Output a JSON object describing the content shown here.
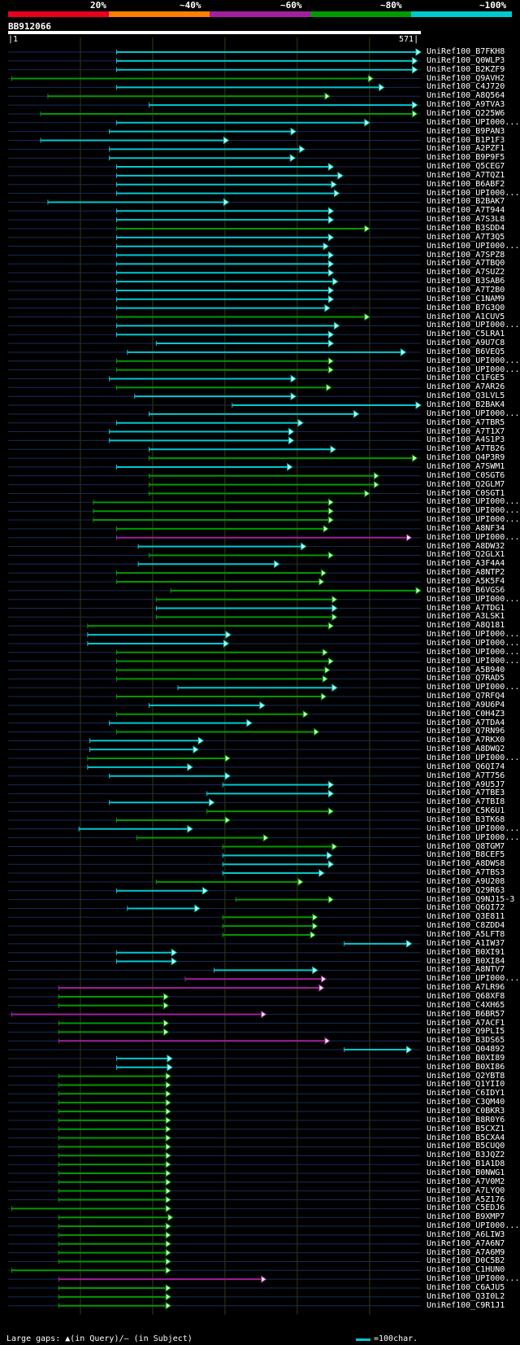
{
  "scale": {
    "labels": [
      "20%",
      "~40%",
      "~60%",
      "~80%",
      "~100%"
    ],
    "colors": [
      "#e8001c",
      "#ff7f00",
      "#a020a0",
      "#009a00",
      "#00c8d2"
    ]
  },
  "query": {
    "id": "BB912066",
    "start": "1",
    "end": "571"
  },
  "footer": {
    "large_gaps": "Large gaps: ▲(in Query)/– (in Subject)",
    "scale_note": "=100char."
  },
  "chart_data": {
    "type": "alignment-map",
    "query_length": 571,
    "hits": [
      {
        "name": "UniRef100_B7FKH8",
        "start": 150,
        "end": 571,
        "color": "c"
      },
      {
        "name": "UniRef100_Q0WLP3",
        "start": 150,
        "end": 566,
        "color": "c"
      },
      {
        "name": "UniRef100_B2KZF9",
        "start": 150,
        "end": 566,
        "color": "c"
      },
      {
        "name": "UniRef100_Q9AVH2",
        "start": 5,
        "end": 505,
        "color": "g"
      },
      {
        "name": "UniRef100_C4J720",
        "start": 150,
        "end": 520,
        "color": "c"
      },
      {
        "name": "UniRef100_A8Q564",
        "start": 55,
        "end": 445,
        "color": "g"
      },
      {
        "name": "UniRef100_A9TVA3",
        "start": 195,
        "end": 566,
        "color": "c"
      },
      {
        "name": "UniRef100_Q225W6",
        "start": 45,
        "end": 566,
        "color": "g"
      },
      {
        "name": "UniRef100_UPI000...",
        "start": 150,
        "end": 500,
        "color": "c"
      },
      {
        "name": "UniRef100_B9PAN3",
        "start": 140,
        "end": 398,
        "color": "c"
      },
      {
        "name": "UniRef100_B1P1F3",
        "start": 45,
        "end": 305,
        "color": "c"
      },
      {
        "name": "UniRef100_A2PZF1",
        "start": 140,
        "end": 410,
        "color": "c"
      },
      {
        "name": "UniRef100_B9P9F5",
        "start": 140,
        "end": 397,
        "color": "c"
      },
      {
        "name": "UniRef100_Q5CEG7",
        "start": 150,
        "end": 450,
        "color": "c"
      },
      {
        "name": "UniRef100_A7TQZ1",
        "start": 150,
        "end": 463,
        "color": "c"
      },
      {
        "name": "UniRef100_B6ABF2",
        "start": 150,
        "end": 454,
        "color": "c"
      },
      {
        "name": "UniRef100_UPI000...",
        "start": 150,
        "end": 458,
        "color": "c"
      },
      {
        "name": "UniRef100_B2BAK7",
        "start": 55,
        "end": 305,
        "color": "c"
      },
      {
        "name": "UniRef100_A7T944",
        "start": 150,
        "end": 450,
        "color": "c"
      },
      {
        "name": "UniRef100_A7S3L8",
        "start": 150,
        "end": 450,
        "color": "c"
      },
      {
        "name": "UniRef100_B3SDD4",
        "start": 150,
        "end": 500,
        "color": "g"
      },
      {
        "name": "UniRef100_A7T3Q5",
        "start": 150,
        "end": 450,
        "color": "c"
      },
      {
        "name": "UniRef100_UPI000...",
        "start": 150,
        "end": 443,
        "color": "c"
      },
      {
        "name": "UniRef100_A7SPZ8",
        "start": 150,
        "end": 450,
        "color": "c"
      },
      {
        "name": "UniRef100_A7TBQ0",
        "start": 150,
        "end": 450,
        "color": "c"
      },
      {
        "name": "UniRef100_A7SUZ2",
        "start": 150,
        "end": 450,
        "color": "c"
      },
      {
        "name": "UniRef100_B3SAB6",
        "start": 150,
        "end": 456,
        "color": "c"
      },
      {
        "name": "UniRef100_A7T2B0",
        "start": 150,
        "end": 450,
        "color": "c"
      },
      {
        "name": "UniRef100_C1NAM9",
        "start": 150,
        "end": 450,
        "color": "c"
      },
      {
        "name": "UniRef100_B7G3Q0",
        "start": 150,
        "end": 445,
        "color": "c"
      },
      {
        "name": "UniRef100_A1CUV5",
        "start": 150,
        "end": 500,
        "color": "g"
      },
      {
        "name": "UniRef100_UPI000...",
        "start": 150,
        "end": 458,
        "color": "c"
      },
      {
        "name": "UniRef100_C5LRA1",
        "start": 150,
        "end": 450,
        "color": "c"
      },
      {
        "name": "UniRef100_A9U7C8",
        "start": 205,
        "end": 450,
        "color": "c"
      },
      {
        "name": "UniRef100_B6VEQ5",
        "start": 165,
        "end": 550,
        "color": "c"
      },
      {
        "name": "UniRef100_UPI000...",
        "start": 150,
        "end": 450,
        "color": "g"
      },
      {
        "name": "UniRef100_UPI000...",
        "start": 150,
        "end": 450,
        "color": "g"
      },
      {
        "name": "UniRef100_C1FGE5",
        "start": 140,
        "end": 398,
        "color": "c"
      },
      {
        "name": "UniRef100_A7AR26",
        "start": 150,
        "end": 447,
        "color": "g"
      },
      {
        "name": "UniRef100_Q3LVL5",
        "start": 175,
        "end": 398,
        "color": "c"
      },
      {
        "name": "UniRef100_B2BAK4",
        "start": 310,
        "end": 571,
        "color": "c"
      },
      {
        "name": "UniRef100_UPI000...",
        "start": 195,
        "end": 485,
        "color": "c"
      },
      {
        "name": "UniRef100_A7TBR5",
        "start": 150,
        "end": 408,
        "color": "c"
      },
      {
        "name": "UniRef100_A7T1X7",
        "start": 140,
        "end": 395,
        "color": "c"
      },
      {
        "name": "UniRef100_A4S1P3",
        "start": 140,
        "end": 395,
        "color": "c"
      },
      {
        "name": "UniRef100_A7TB26",
        "start": 195,
        "end": 453,
        "color": "c"
      },
      {
        "name": "UniRef100_Q4P3R9",
        "start": 195,
        "end": 566,
        "color": "g"
      },
      {
        "name": "UniRef100_A7SWM1",
        "start": 150,
        "end": 393,
        "color": "c"
      },
      {
        "name": "UniRef100_C0SGT6",
        "start": 195,
        "end": 513,
        "color": "g"
      },
      {
        "name": "UniRef100_Q2GLM7",
        "start": 195,
        "end": 513,
        "color": "g"
      },
      {
        "name": "UniRef100_C0SGT1",
        "start": 195,
        "end": 500,
        "color": "g"
      },
      {
        "name": "UniRef100_UPI000...",
        "start": 118,
        "end": 450,
        "color": "g"
      },
      {
        "name": "UniRef100_UPI000...",
        "start": 118,
        "end": 450,
        "color": "g"
      },
      {
        "name": "UniRef100_UPI000...",
        "start": 118,
        "end": 450,
        "color": "g"
      },
      {
        "name": "UniRef100_A8NF34",
        "start": 150,
        "end": 443,
        "color": "g"
      },
      {
        "name": "UniRef100_UPI000...",
        "start": 150,
        "end": 558,
        "color": "m"
      },
      {
        "name": "UniRef100_A8DW32",
        "start": 180,
        "end": 412,
        "color": "c"
      },
      {
        "name": "UniRef100_Q2GLX1",
        "start": 195,
        "end": 450,
        "color": "g"
      },
      {
        "name": "UniRef100_A3F4A4",
        "start": 180,
        "end": 375,
        "color": "c"
      },
      {
        "name": "UniRef100_A8NTP2",
        "start": 150,
        "end": 440,
        "color": "g"
      },
      {
        "name": "UniRef100_A5K5F4",
        "start": 150,
        "end": 437,
        "color": "g"
      },
      {
        "name": "UniRef100_B6VGS6",
        "start": 225,
        "end": 571,
        "color": "g"
      },
      {
        "name": "UniRef100_UPI000...",
        "start": 205,
        "end": 455,
        "color": "g"
      },
      {
        "name": "UniRef100_A7TDG1",
        "start": 205,
        "end": 455,
        "color": "c"
      },
      {
        "name": "UniRef100_A3LSK1",
        "start": 205,
        "end": 455,
        "color": "g"
      },
      {
        "name": "UniRef100_A8Q181",
        "start": 110,
        "end": 450,
        "color": "g"
      },
      {
        "name": "UniRef100_UPI000...",
        "start": 110,
        "end": 308,
        "color": "c"
      },
      {
        "name": "UniRef100_UPI000...",
        "start": 110,
        "end": 305,
        "color": "c"
      },
      {
        "name": "UniRef100_UPI000...",
        "start": 150,
        "end": 442,
        "color": "g"
      },
      {
        "name": "UniRef100_UPI000...",
        "start": 150,
        "end": 450,
        "color": "g"
      },
      {
        "name": "UniRef100_A5B940",
        "start": 150,
        "end": 445,
        "color": "g"
      },
      {
        "name": "UniRef100_Q7RAD5",
        "start": 150,
        "end": 442,
        "color": "g"
      },
      {
        "name": "UniRef100_UPI000...",
        "start": 235,
        "end": 455,
        "color": "c"
      },
      {
        "name": "UniRef100_Q7RFQ4",
        "start": 150,
        "end": 440,
        "color": "g"
      },
      {
        "name": "UniRef100_A9U6P4",
        "start": 195,
        "end": 355,
        "color": "c"
      },
      {
        "name": "UniRef100_C0H4Z3",
        "start": 150,
        "end": 415,
        "color": "g"
      },
      {
        "name": "UniRef100_A7TDA4",
        "start": 140,
        "end": 337,
        "color": "c"
      },
      {
        "name": "UniRef100_Q7RN96",
        "start": 150,
        "end": 430,
        "color": "g"
      },
      {
        "name": "UniRef100_A7RKX0",
        "start": 113,
        "end": 270,
        "color": "c"
      },
      {
        "name": "UniRef100_A8DWQ2",
        "start": 113,
        "end": 263,
        "color": "c"
      },
      {
        "name": "UniRef100_UPI000...",
        "start": 110,
        "end": 307,
        "color": "g"
      },
      {
        "name": "UniRef100_Q6QI74",
        "start": 110,
        "end": 255,
        "color": "c"
      },
      {
        "name": "UniRef100_A7T756",
        "start": 140,
        "end": 307,
        "color": "c"
      },
      {
        "name": "UniRef100_A9U5J7",
        "start": 297,
        "end": 450,
        "color": "c"
      },
      {
        "name": "UniRef100_A7TBE3",
        "start": 275,
        "end": 450,
        "color": "c"
      },
      {
        "name": "UniRef100_A7TBI8",
        "start": 140,
        "end": 285,
        "color": "c"
      },
      {
        "name": "UniRef100_C5K6U1",
        "start": 275,
        "end": 450,
        "color": "g"
      },
      {
        "name": "UniRef100_B3TK68",
        "start": 150,
        "end": 307,
        "color": "g"
      },
      {
        "name": "UniRef100_UPI000...",
        "start": 98,
        "end": 255,
        "color": "c"
      },
      {
        "name": "UniRef100_UPI000...",
        "start": 178,
        "end": 360,
        "color": "g"
      },
      {
        "name": "UniRef100_Q8TGM7",
        "start": 297,
        "end": 455,
        "color": "g"
      },
      {
        "name": "UniRef100_B8CEF5",
        "start": 297,
        "end": 448,
        "color": "c"
      },
      {
        "name": "UniRef100_A8DWS8",
        "start": 297,
        "end": 450,
        "color": "c"
      },
      {
        "name": "UniRef100_A7TBS3",
        "start": 297,
        "end": 437,
        "color": "c"
      },
      {
        "name": "UniRef100_A9U208",
        "start": 205,
        "end": 408,
        "color": "g"
      },
      {
        "name": "UniRef100_Q29R63",
        "start": 150,
        "end": 276,
        "color": "c"
      },
      {
        "name": "UniRef100_Q9NJ15-3",
        "start": 315,
        "end": 450,
        "color": "g"
      },
      {
        "name": "UniRef100_Q6QI72",
        "start": 165,
        "end": 265,
        "color": "c"
      },
      {
        "name": "UniRef100_Q3E811",
        "start": 297,
        "end": 428,
        "color": "g"
      },
      {
        "name": "UniRef100_C8ZDD4",
        "start": 297,
        "end": 428,
        "color": "g"
      },
      {
        "name": "UniRef100_A5LFT8",
        "start": 297,
        "end": 425,
        "color": "g"
      },
      {
        "name": "UniRef100_A1IW37",
        "start": 465,
        "end": 558,
        "color": "c"
      },
      {
        "name": "UniRef100_B0XI91",
        "start": 150,
        "end": 233,
        "color": "c"
      },
      {
        "name": "UniRef100_B0XI84",
        "start": 150,
        "end": 233,
        "color": "c"
      },
      {
        "name": "UniRef100_A8NTV7",
        "start": 285,
        "end": 428,
        "color": "c"
      },
      {
        "name": "UniRef100_UPI000...",
        "start": 245,
        "end": 440,
        "color": "m"
      },
      {
        "name": "UniRef100_A7LR96",
        "start": 70,
        "end": 437,
        "color": "m"
      },
      {
        "name": "UniRef100_Q68XF8",
        "start": 70,
        "end": 222,
        "color": "g"
      },
      {
        "name": "UniRef100_C4XH65",
        "start": 70,
        "end": 222,
        "color": "g"
      },
      {
        "name": "UniRef100_B6BR57",
        "start": 5,
        "end": 357,
        "color": "m"
      },
      {
        "name": "UniRef100_A7ACF1",
        "start": 70,
        "end": 222,
        "color": "g"
      },
      {
        "name": "UniRef100_Q9PLI5",
        "start": 70,
        "end": 222,
        "color": "g"
      },
      {
        "name": "UniRef100_B3DS65",
        "start": 70,
        "end": 445,
        "color": "m"
      },
      {
        "name": "UniRef100_Q04892",
        "start": 465,
        "end": 558,
        "color": "c"
      },
      {
        "name": "UniRef100_B0XI89",
        "start": 150,
        "end": 227,
        "color": "c"
      },
      {
        "name": "UniRef100_B0XI86",
        "start": 150,
        "end": 227,
        "color": "c"
      },
      {
        "name": "UniRef100_Q2YBT8",
        "start": 70,
        "end": 225,
        "color": "g"
      },
      {
        "name": "UniRef100_Q1YII0",
        "start": 70,
        "end": 225,
        "color": "g"
      },
      {
        "name": "UniRef100_C6IDY1",
        "start": 70,
        "end": 225,
        "color": "g"
      },
      {
        "name": "UniRef100_C3QM40",
        "start": 70,
        "end": 225,
        "color": "g"
      },
      {
        "name": "UniRef100_C0BKR3",
        "start": 70,
        "end": 225,
        "color": "g"
      },
      {
        "name": "UniRef100_B8R0Y6",
        "start": 70,
        "end": 225,
        "color": "g"
      },
      {
        "name": "UniRef100_B5CXZ1",
        "start": 70,
        "end": 225,
        "color": "g"
      },
      {
        "name": "UniRef100_B5CXA4",
        "start": 70,
        "end": 225,
        "color": "g"
      },
      {
        "name": "UniRef100_B5CUQ0",
        "start": 70,
        "end": 225,
        "color": "g"
      },
      {
        "name": "UniRef100_B3JQZ2",
        "start": 70,
        "end": 225,
        "color": "g"
      },
      {
        "name": "UniRef100_B1A1D8",
        "start": 70,
        "end": 225,
        "color": "g"
      },
      {
        "name": "UniRef100_B0NWG1",
        "start": 70,
        "end": 225,
        "color": "g"
      },
      {
        "name": "UniRef100_A7V0M2",
        "start": 70,
        "end": 225,
        "color": "g"
      },
      {
        "name": "UniRef100_A7LYQ0",
        "start": 70,
        "end": 225,
        "color": "g"
      },
      {
        "name": "UniRef100_A5Z176",
        "start": 70,
        "end": 225,
        "color": "g"
      },
      {
        "name": "UniRef100_C5EDJ6",
        "start": 5,
        "end": 225,
        "color": "g"
      },
      {
        "name": "UniRef100_B9XMP7",
        "start": 70,
        "end": 228,
        "color": "g"
      },
      {
        "name": "UniRef100_UPI000...",
        "start": 70,
        "end": 225,
        "color": "g"
      },
      {
        "name": "UniRef100_A6LIW3",
        "start": 70,
        "end": 225,
        "color": "g"
      },
      {
        "name": "UniRef100_A7A6N7",
        "start": 70,
        "end": 225,
        "color": "g"
      },
      {
        "name": "UniRef100_A7A6M9",
        "start": 70,
        "end": 225,
        "color": "g"
      },
      {
        "name": "UniRef100_D0C5B2",
        "start": 70,
        "end": 225,
        "color": "g"
      },
      {
        "name": "UniRef100_C1HUN0",
        "start": 5,
        "end": 225,
        "color": "g"
      },
      {
        "name": "UniRef100_UPI000...",
        "start": 70,
        "end": 357,
        "color": "m"
      },
      {
        "name": "UniRef100_C6AJU5",
        "start": 70,
        "end": 225,
        "color": "g"
      },
      {
        "name": "UniRef100_Q3I0L2",
        "start": 70,
        "end": 225,
        "color": "g"
      },
      {
        "name": "UniRef100_C9R1J1",
        "start": 70,
        "end": 225,
        "color": "g"
      }
    ]
  }
}
